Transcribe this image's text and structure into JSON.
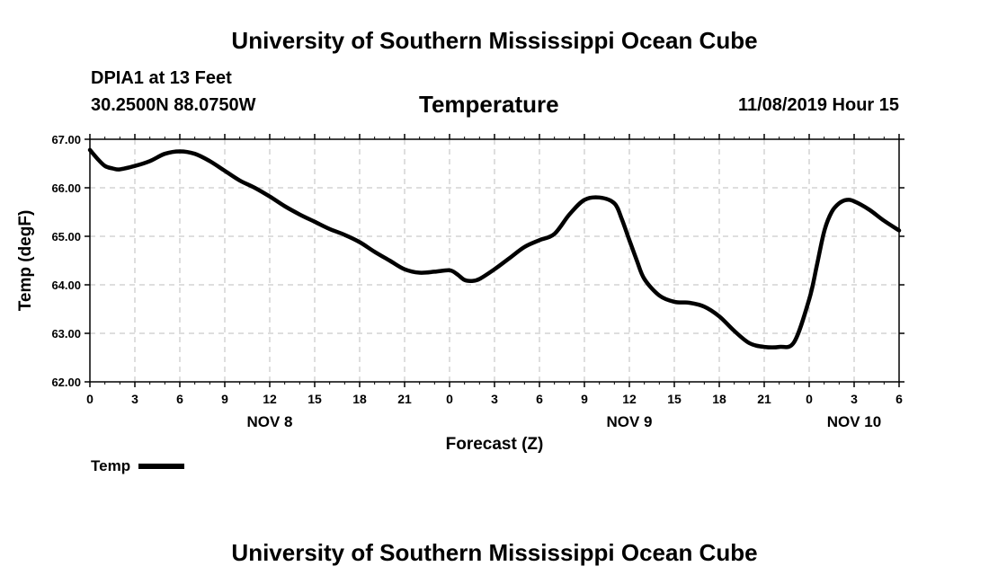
{
  "header": {
    "title": "University of Southern Mississippi Ocean Cube",
    "station": "DPIA1 at 13 Feet",
    "coords": "30.2500N 88.0750W",
    "timestamp": "11/08/2019 Hour 15"
  },
  "footer": {
    "title": "University of Southern Mississippi Ocean Cube"
  },
  "legend": {
    "label": "Temp"
  },
  "chart_data": {
    "type": "line",
    "title": "Temperature",
    "xlabel": "Forecast (Z)",
    "ylabel": "Temp (degF)",
    "ylim": [
      62.0,
      67.0
    ],
    "yticks": [
      "62.00",
      "63.00",
      "64.00",
      "65.00",
      "66.00",
      "67.00"
    ],
    "xlim_hours": [
      0,
      54
    ],
    "xtick_labels": [
      "0",
      "3",
      "6",
      "9",
      "12",
      "15",
      "18",
      "21",
      "0",
      "3",
      "6",
      "9",
      "12",
      "15",
      "18",
      "21",
      "0",
      "3",
      "6"
    ],
    "day_labels": [
      {
        "label": "NOV 8",
        "hour": 12
      },
      {
        "label": "NOV 9",
        "hour": 36
      },
      {
        "label": "NOV 10",
        "hour": 51
      }
    ],
    "grid": true,
    "line_color": "#000000",
    "series": [
      {
        "name": "Temp",
        "x": [
          0,
          0.5,
          1,
          1.5,
          2,
          3,
          4,
          5,
          6,
          7,
          8,
          9,
          10,
          11,
          12,
          13,
          14,
          15,
          16,
          17,
          18,
          19,
          20,
          21,
          22,
          23,
          24,
          24.5,
          25,
          25.5,
          26,
          27,
          28,
          29,
          30,
          31,
          32,
          33,
          34,
          35,
          35.5,
          36,
          36.5,
          37,
          38,
          39,
          40,
          41,
          42,
          43,
          44,
          45,
          46,
          47,
          48,
          48.5,
          49,
          49.5,
          50,
          50.5,
          51,
          52,
          53,
          54
        ],
        "values": [
          66.78,
          66.6,
          66.45,
          66.4,
          66.38,
          66.45,
          66.55,
          66.7,
          66.75,
          66.7,
          66.55,
          66.35,
          66.15,
          66.0,
          65.82,
          65.62,
          65.45,
          65.3,
          65.15,
          65.03,
          64.88,
          64.68,
          64.5,
          64.32,
          64.25,
          64.27,
          64.3,
          64.22,
          64.1,
          64.08,
          64.12,
          64.32,
          64.55,
          64.78,
          64.92,
          65.05,
          65.45,
          65.75,
          65.8,
          65.68,
          65.35,
          64.92,
          64.5,
          64.12,
          63.78,
          63.65,
          63.63,
          63.55,
          63.35,
          63.05,
          62.8,
          62.72,
          62.72,
          62.82,
          63.7,
          64.38,
          65.1,
          65.5,
          65.68,
          65.75,
          65.72,
          65.55,
          65.32,
          65.12
        ]
      }
    ]
  }
}
